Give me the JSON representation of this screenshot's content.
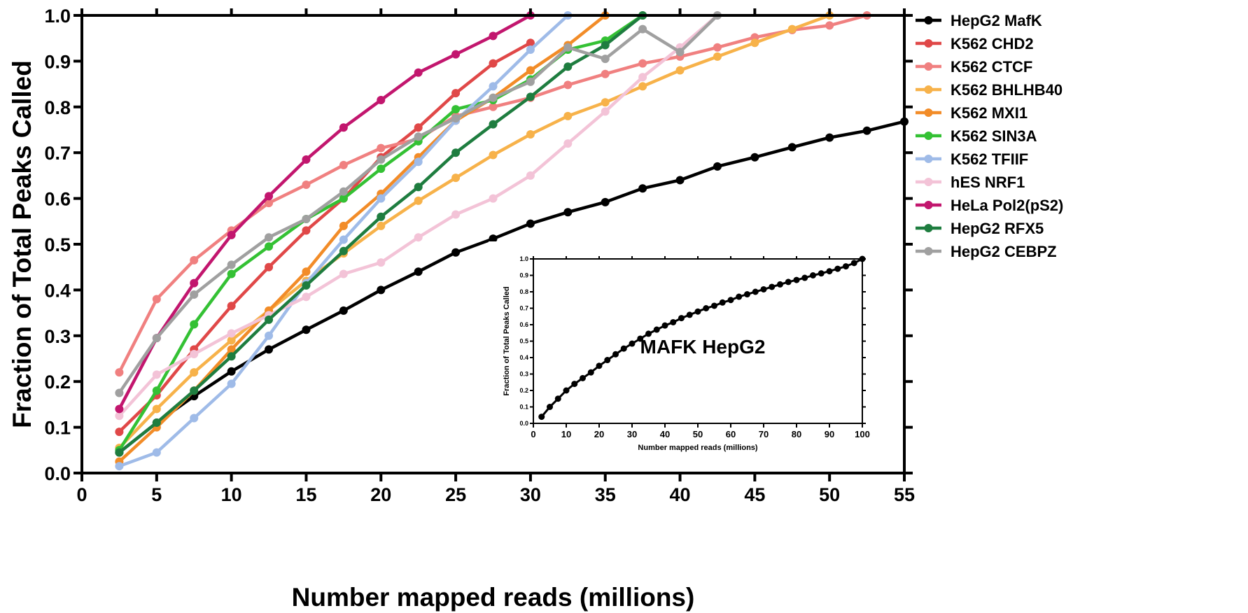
{
  "chart_data": [
    {
      "type": "line",
      "title": "",
      "xlabel": "Number mapped reads (millions)",
      "ylabel": "Fraction of Total Peaks Called",
      "xlim": [
        0,
        55
      ],
      "ylim": [
        0,
        1.0
      ],
      "xticks": [
        "0",
        "5",
        "10",
        "15",
        "20",
        "25",
        "30",
        "35",
        "40",
        "45",
        "50",
        "55"
      ],
      "yticks": [
        "0.0",
        "0.1",
        "0.2",
        "0.3",
        "0.4",
        "0.5",
        "0.6",
        "0.7",
        "0.8",
        "0.9",
        "1.0"
      ],
      "grid": false,
      "legend_position": "right",
      "series": [
        {
          "name": "HepG2 MafK",
          "color": "#000000",
          "x": [
            2.5,
            5,
            7.5,
            10,
            12.5,
            15,
            17.5,
            20,
            22.5,
            25,
            27.5,
            30,
            32.5,
            35,
            37.5,
            40,
            42.5,
            45,
            47.5,
            50,
            52.5,
            55
          ],
          "y": [
            0.045,
            0.11,
            0.168,
            0.222,
            0.27,
            0.313,
            0.355,
            0.4,
            0.44,
            0.482,
            0.512,
            0.545,
            0.57,
            0.592,
            0.622,
            0.64,
            0.67,
            0.69,
            0.712,
            0.733,
            0.748,
            0.768
          ]
        },
        {
          "name": "K562 CHD2",
          "color": "#e04848",
          "x": [
            2.5,
            5,
            7.5,
            10,
            12.5,
            15,
            17.5,
            20,
            22.5,
            25,
            27.5,
            30
          ],
          "y": [
            0.09,
            0.17,
            0.27,
            0.365,
            0.45,
            0.53,
            0.6,
            0.69,
            0.755,
            0.83,
            0.895,
            0.94
          ]
        },
        {
          "name": "K562 CTCF",
          "color": "#f08080",
          "x": [
            2.5,
            5,
            7.5,
            10,
            12.5,
            15,
            17.5,
            20,
            22.5,
            25,
            27.5,
            30,
            32.5,
            35,
            37.5,
            40,
            42.5,
            45,
            47.5,
            50,
            52.5
          ],
          "y": [
            0.22,
            0.38,
            0.465,
            0.53,
            0.59,
            0.63,
            0.673,
            0.71,
            0.73,
            0.78,
            0.8,
            0.82,
            0.848,
            0.872,
            0.895,
            0.91,
            0.93,
            0.952,
            0.968,
            0.978,
            1.0
          ]
        },
        {
          "name": "K562 BHLHB40",
          "color": "#f7b24a",
          "x": [
            2.5,
            5,
            7.5,
            10,
            12.5,
            15,
            17.5,
            20,
            22.5,
            25,
            27.5,
            30,
            32.5,
            35,
            37.5,
            40,
            42.5,
            45,
            47.5,
            50
          ],
          "y": [
            0.055,
            0.14,
            0.22,
            0.29,
            0.355,
            0.42,
            0.48,
            0.54,
            0.595,
            0.645,
            0.695,
            0.74,
            0.78,
            0.81,
            0.845,
            0.88,
            0.91,
            0.94,
            0.97,
            1.0
          ]
        },
        {
          "name": "K562 MXI1",
          "color": "#f28c28",
          "x": [
            2.5,
            5,
            7.5,
            10,
            12.5,
            15,
            17.5,
            20,
            22.5,
            25,
            27.5,
            30,
            32.5,
            35
          ],
          "y": [
            0.025,
            0.1,
            0.18,
            0.27,
            0.355,
            0.44,
            0.54,
            0.61,
            0.69,
            0.77,
            0.82,
            0.88,
            0.935,
            1.0
          ]
        },
        {
          "name": "K562 SIN3A",
          "color": "#34c134",
          "x": [
            2.5,
            5,
            7.5,
            10,
            12.5,
            15,
            17.5,
            20,
            22.5,
            25,
            27.5,
            30,
            32.5,
            35,
            37.5
          ],
          "y": [
            0.05,
            0.18,
            0.325,
            0.435,
            0.495,
            0.555,
            0.6,
            0.665,
            0.725,
            0.795,
            0.815,
            0.86,
            0.925,
            0.945,
            1.0
          ]
        },
        {
          "name": "K562 TFIIF",
          "color": "#9fbbe8",
          "x": [
            2.5,
            5,
            7.5,
            10,
            12.5,
            15,
            17.5,
            20,
            22.5,
            25,
            27.5,
            30,
            32.5
          ],
          "y": [
            0.015,
            0.045,
            0.12,
            0.195,
            0.3,
            0.415,
            0.51,
            0.6,
            0.68,
            0.77,
            0.845,
            0.925,
            1.0
          ]
        },
        {
          "name": "hES NRF1",
          "color": "#f3c3d7",
          "x": [
            2.5,
            5,
            7.5,
            10,
            12.5,
            15,
            17.5,
            20,
            22.5,
            25,
            27.5,
            30,
            32.5,
            35,
            37.5,
            40,
            42.5
          ],
          "y": [
            0.125,
            0.215,
            0.26,
            0.305,
            0.345,
            0.385,
            0.435,
            0.46,
            0.515,
            0.565,
            0.6,
            0.65,
            0.72,
            0.79,
            0.865,
            0.93,
            1.0
          ]
        },
        {
          "name": "HeLa Pol2(pS2)",
          "color": "#c2166e",
          "x": [
            2.5,
            5,
            7.5,
            10,
            12.5,
            15,
            17.5,
            20,
            22.5,
            25,
            27.5,
            30
          ],
          "y": [
            0.14,
            0.295,
            0.415,
            0.52,
            0.605,
            0.685,
            0.755,
            0.815,
            0.875,
            0.915,
            0.955,
            1.0
          ]
        },
        {
          "name": "HepG2 RFX5",
          "color": "#1e7d3f",
          "x": [
            2.5,
            5,
            7.5,
            10,
            12.5,
            15,
            17.5,
            20,
            22.5,
            25,
            27.5,
            30,
            32.5,
            35,
            37.5
          ],
          "y": [
            0.045,
            0.11,
            0.18,
            0.255,
            0.335,
            0.41,
            0.485,
            0.56,
            0.625,
            0.7,
            0.762,
            0.822,
            0.888,
            0.935,
            1.0
          ]
        },
        {
          "name": "HepG2 CEBPZ",
          "color": "#a0a0a0",
          "x": [
            2.5,
            5,
            7.5,
            10,
            12.5,
            15,
            17.5,
            20,
            22.5,
            25,
            27.5,
            30,
            32.5,
            35,
            37.5,
            40,
            42.5
          ],
          "y": [
            0.175,
            0.295,
            0.39,
            0.455,
            0.515,
            0.555,
            0.615,
            0.685,
            0.735,
            0.775,
            0.82,
            0.855,
            0.93,
            0.905,
            0.97,
            0.92,
            1.0
          ]
        }
      ]
    },
    {
      "type": "line",
      "title": "",
      "annotation": "MAFK HepG2",
      "xlabel": "Number mapped reads (millions)",
      "ylabel": "Fraction of Total Peaks Called",
      "xlim": [
        0,
        100
      ],
      "ylim": [
        0,
        1.0
      ],
      "xticks": [
        "0",
        "10",
        "20",
        "30",
        "40",
        "50",
        "60",
        "70",
        "80",
        "90",
        "100"
      ],
      "yticks": [
        "0.0",
        "0.1",
        "0.2",
        "0.3",
        "0.4",
        "0.5",
        "0.6",
        "0.7",
        "0.8",
        "0.9",
        "1.0"
      ],
      "grid": false,
      "series": [
        {
          "color": "#000000",
          "x": [
            2.5,
            5,
            7.5,
            10,
            12.5,
            15,
            17.5,
            20,
            22.5,
            25,
            27.5,
            30,
            32.5,
            35,
            37.5,
            40,
            42.5,
            45,
            47.5,
            50,
            52.5,
            55,
            57.5,
            60,
            62.5,
            65,
            67.5,
            70,
            72.5,
            75,
            77.5,
            80,
            82.5,
            85,
            87.5,
            90,
            92.5,
            95,
            97.5,
            100
          ],
          "y": [
            0.04,
            0.1,
            0.15,
            0.2,
            0.24,
            0.275,
            0.31,
            0.35,
            0.385,
            0.42,
            0.455,
            0.485,
            0.515,
            0.545,
            0.57,
            0.595,
            0.615,
            0.64,
            0.66,
            0.68,
            0.7,
            0.715,
            0.735,
            0.75,
            0.77,
            0.785,
            0.8,
            0.815,
            0.83,
            0.845,
            0.86,
            0.872,
            0.885,
            0.9,
            0.912,
            0.925,
            0.94,
            0.955,
            0.975,
            1.0
          ]
        }
      ]
    }
  ]
}
